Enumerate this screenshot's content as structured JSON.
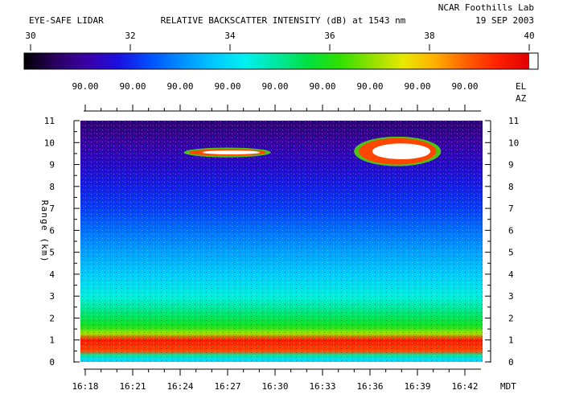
{
  "header": {
    "instrument": "EYE-SAFE LIDAR",
    "title": "RELATIVE BACKSCATTER INTENSITY (dB) at 1543 nm",
    "lab": "NCAR Foothills Lab",
    "date": "19 SEP 2003"
  },
  "colorbar": {
    "min": 30,
    "max": 40,
    "tick_labels": [
      "30",
      "32",
      "34",
      "36",
      "38",
      "40"
    ],
    "colormap": [
      "#000000",
      "#2a0060",
      "#3a00a8",
      "#1a10e0",
      "#0050ff",
      "#0090ff",
      "#00c8ff",
      "#00f0f0",
      "#00e8a0",
      "#00e040",
      "#30e000",
      "#90e000",
      "#e8e800",
      "#ffb000",
      "#ff6000",
      "#ff2000",
      "#e00000"
    ],
    "overflow_color": "#ffffff"
  },
  "angles": {
    "values": [
      "90.00",
      "90.00",
      "90.00",
      "90.00",
      "90.00",
      "90.00",
      "90.00",
      "90.00",
      "90.00"
    ],
    "el_label": "EL",
    "az_label": "AZ"
  },
  "chart_data": {
    "type": "heatmap",
    "title": "RELATIVE BACKSCATTER INTENSITY (dB) at 1543 nm",
    "ylabel": "Range (km)",
    "x_unit": "MDT",
    "xlim": [
      "16:17",
      "16:43"
    ],
    "ylim": [
      0,
      11
    ],
    "x_tick_labels": [
      "16:18",
      "16:21",
      "16:24",
      "16:27",
      "16:30",
      "16:33",
      "16:36",
      "16:39",
      "16:42"
    ],
    "y_tick_labels": [
      "0",
      "1",
      "2",
      "3",
      "4",
      "5",
      "6",
      "7",
      "8",
      "9",
      "10",
      "11"
    ],
    "value_range_db": [
      30,
      40
    ],
    "vertical_profile": [
      {
        "range_km": 0.1,
        "db": 34.0
      },
      {
        "range_km": 0.3,
        "db": 35.0
      },
      {
        "range_km": 0.5,
        "db": 39.0
      },
      {
        "range_km": 1.0,
        "db": 39.5
      },
      {
        "range_km": 1.3,
        "db": 37.0
      },
      {
        "range_km": 1.6,
        "db": 36.0
      },
      {
        "range_km": 2.0,
        "db": 35.5
      },
      {
        "range_km": 2.5,
        "db": 35.0
      },
      {
        "range_km": 3.0,
        "db": 34.5
      },
      {
        "range_km": 4.0,
        "db": 33.8
      },
      {
        "range_km": 5.0,
        "db": 33.3
      },
      {
        "range_km": 6.0,
        "db": 32.8
      },
      {
        "range_km": 7.0,
        "db": 32.3
      },
      {
        "range_km": 8.0,
        "db": 32.0
      },
      {
        "range_km": 9.0,
        "db": 31.6
      },
      {
        "range_km": 10.0,
        "db": 31.2
      },
      {
        "range_km": 11.0,
        "db": 30.8
      }
    ],
    "features": [
      {
        "name": "cloud layer",
        "time_start": "16:24",
        "time_end": "16:29",
        "range_km": [
          9.4,
          9.7
        ],
        "db_max": 40
      },
      {
        "name": "cloud layer",
        "time_start": "16:35",
        "time_end": "16:40",
        "range_km": [
          9.0,
          10.2
        ],
        "db_max": 40
      },
      {
        "name": "boundary layer aerosol",
        "time_start": "16:18",
        "time_end": "16:42",
        "range_km": [
          0.3,
          1.5
        ],
        "db_max": 39.5
      }
    ]
  }
}
